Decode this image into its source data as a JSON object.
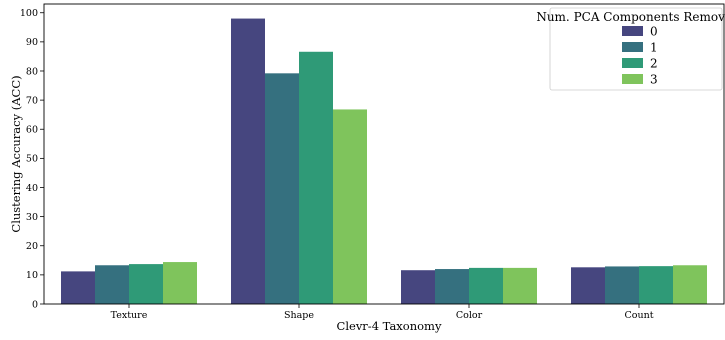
{
  "chart_data": {
    "type": "bar",
    "title": "",
    "xlabel": "Clevr-4 Taxonomy",
    "ylabel": "Clustering Accuracy (ACC)",
    "categories": [
      "Texture",
      "Shape",
      "Color",
      "Count"
    ],
    "ylim": [
      0,
      103
    ],
    "yticks": [
      0,
      10,
      20,
      30,
      40,
      50,
      60,
      70,
      80,
      90,
      100
    ],
    "grid": false,
    "legend": {
      "title": "Num. PCA Components Removed",
      "placement": "top-right"
    },
    "series": [
      {
        "name": "0",
        "color": "#46467f",
        "values": [
          11.2,
          98.0,
          11.6,
          12.6
        ]
      },
      {
        "name": "1",
        "color": "#35707f",
        "values": [
          13.3,
          79.2,
          12.0,
          12.9
        ]
      },
      {
        "name": "2",
        "color": "#2f9a77",
        "values": [
          13.7,
          86.6,
          12.4,
          13.0
        ]
      },
      {
        "name": "3",
        "color": "#7fc45c",
        "values": [
          14.4,
          66.8,
          12.4,
          13.3
        ]
      }
    ]
  }
}
